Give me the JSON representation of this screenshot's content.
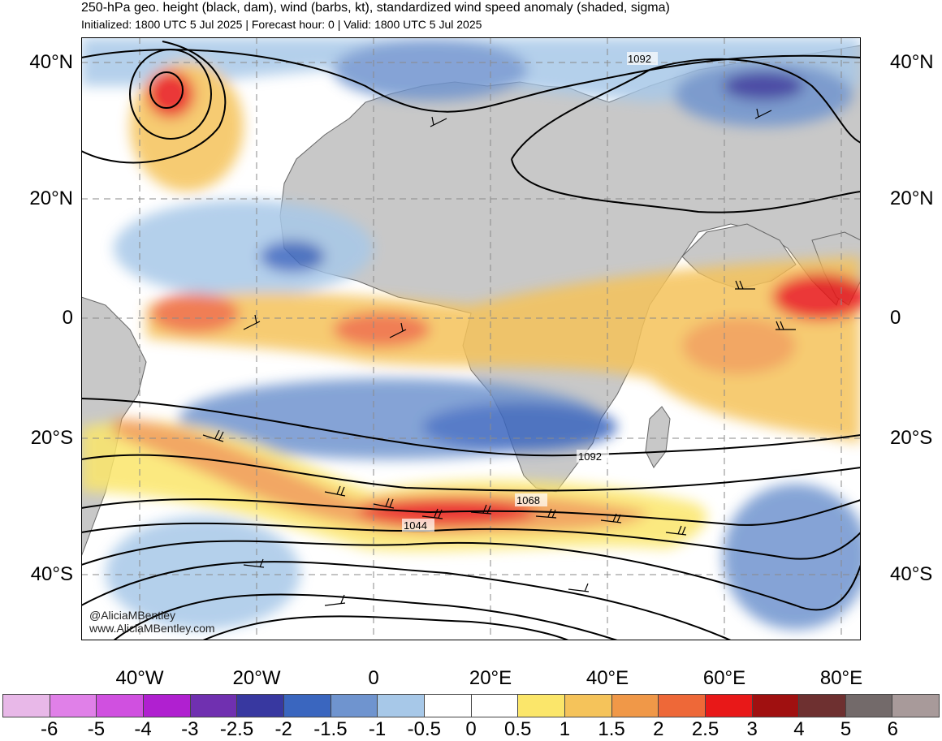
{
  "header": {
    "title": "250-hPa geo. height (black, dam), wind (barbs, kt), standardized wind speed anomaly (shaded, sigma)",
    "subtitle": "Initialized: 1800 UTC 5 Jul 2025 | Forecast hour: 0 | Valid: 1800 UTC 5 Jul 2025"
  },
  "map": {
    "latitude_labels": [
      "40°N",
      "20°N",
      "0",
      "20°S",
      "40°S"
    ],
    "longitude_labels": [
      "40°W",
      "20°W",
      "0",
      "20°E",
      "40°E",
      "60°E",
      "80°E"
    ],
    "contour_labels": [
      "1092",
      "1092",
      "1068",
      "1044"
    ],
    "credit_handle": "@AliciaMBentley",
    "credit_url": "www.AliciaMBentley.com",
    "land_color": "#c8c8c8",
    "ocean_color": "#ffffff"
  },
  "colorbar": {
    "labels": [
      "-6",
      "-5",
      "-4",
      "-3",
      "-2.5",
      "-2",
      "-1.5",
      "-1",
      "-0.5",
      "0",
      "0.5",
      "1",
      "1.5",
      "2",
      "2.5",
      "3",
      "4",
      "5",
      "6"
    ],
    "colors": [
      "#e8b8e8",
      "#e080e8",
      "#d050e0",
      "#b020d0",
      "#7030b0",
      "#3838a0",
      "#3a66bf",
      "#6f94cf",
      "#a7c8e8",
      "#ffffff",
      "#ffffff",
      "#fbe66a",
      "#f5c35a",
      "#f09848",
      "#ee6838",
      "#e81818",
      "#a01010",
      "#6e3030",
      "#736a6a",
      "#a89a9a"
    ]
  }
}
